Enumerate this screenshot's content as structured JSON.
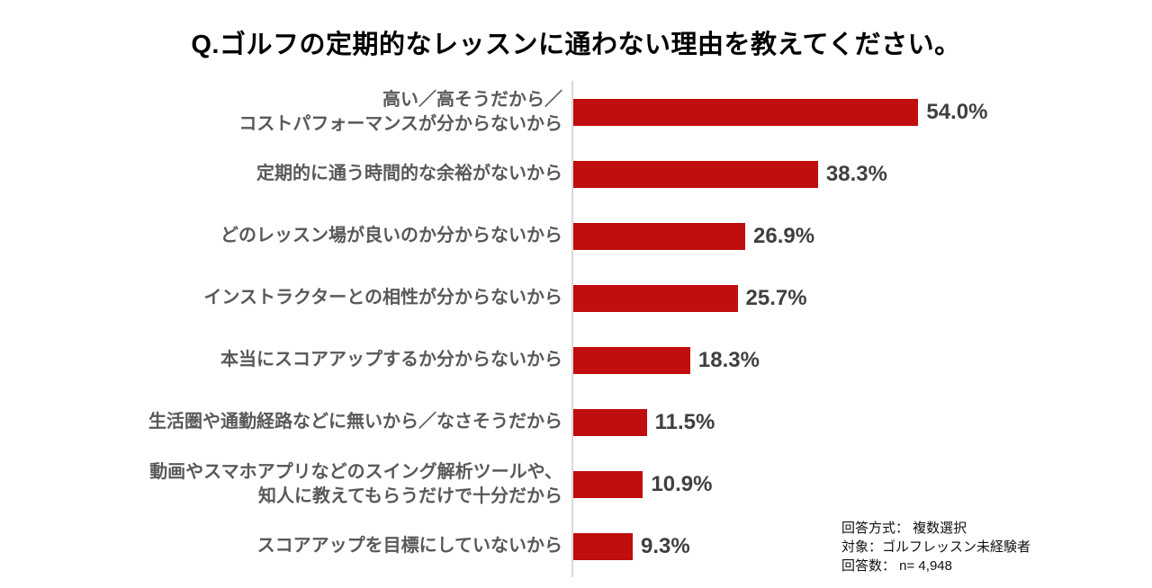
{
  "title": "Q.ゴルフの定期的なレッスンに通わない理由を教えてください。",
  "chart_data": {
    "type": "bar",
    "orientation": "horizontal",
    "title": "Q.ゴルフの定期的なレッスンに通わない理由を教えてください。",
    "categories": [
      "高い／高そうだから／\nコストパフォーマンスが分からないから",
      "定期的に通う時間的な余裕がないから",
      "どのレッスン場が良いのか分からないから",
      "インストラクターとの相性が分からないから",
      "本当にスコアアップするか分からないから",
      "生活圏や通勤経路などに無いから／なさそうだから",
      "動画やスマホアプリなどのスイング解析ツールや、\n知人に教えてもらうだけで十分だから",
      "スコアアップを目標にしていないから"
    ],
    "values": [
      54.0,
      38.3,
      26.9,
      25.7,
      18.3,
      11.5,
      10.9,
      9.3
    ],
    "value_suffix": "%",
    "xlabel": "",
    "ylabel": "",
    "xlim": [
      0,
      60
    ],
    "grid": false,
    "legend": false,
    "data_labels": [
      "54.0%",
      "38.3%",
      "26.9%",
      "25.7%",
      "18.3%",
      "11.5%",
      "10.9%",
      "9.3%"
    ]
  },
  "note": {
    "lines": [
      "回答方式： 複数選択",
      "対象：ゴルフレッスン未経験者",
      "回答数： n= 4,948"
    ]
  },
  "colors": {
    "bar": "#C00D0D",
    "category_label": "#595959",
    "value_label": "#404040",
    "axis_line": "#D9D9D9",
    "title": "#000000"
  }
}
